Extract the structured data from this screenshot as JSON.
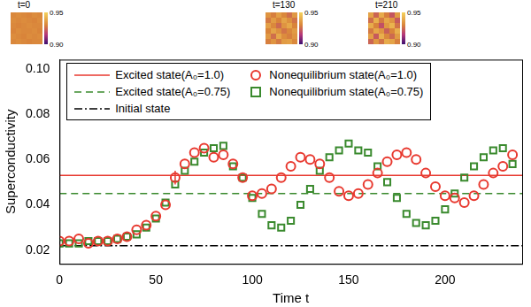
{
  "chart_data": [
    {
      "type": "scatter",
      "x_label": "Time t",
      "y_label": "Superconductivity",
      "x": [
        0,
        5,
        10,
        15,
        20,
        25,
        30,
        35,
        40,
        45,
        50,
        55,
        60,
        65,
        70,
        75,
        80,
        85,
        90,
        95,
        100,
        105,
        110,
        115,
        120,
        125,
        130,
        135,
        140,
        145,
        150,
        155,
        160,
        165,
        170,
        175,
        180,
        185,
        190,
        195,
        200,
        205,
        210,
        215,
        220,
        225,
        230,
        235
      ],
      "series": [
        {
          "name": "Excited state(A₀=1.0)",
          "type": "line",
          "line_style": "solid",
          "color": "#e8392f",
          "x": [
            0,
            240
          ],
          "values": [
            0.053,
            0.053
          ]
        },
        {
          "name": "Excited state(A₀=0.75)",
          "type": "line",
          "line_style": "dashed",
          "color": "#3a8a2e",
          "x": [
            0,
            240
          ],
          "values": [
            0.045,
            0.045
          ]
        },
        {
          "name": "Initial state",
          "type": "line",
          "line_style": "dashdot",
          "color": "#000000",
          "x": [
            0,
            240
          ],
          "values": [
            0.022,
            0.022
          ]
        },
        {
          "name": "Nonequilibrium state(A₀=1.0)",
          "type": "scatter",
          "marker": "circle",
          "color": "#e8392f",
          "values": [
            0.024,
            0.024,
            0.025,
            0.023,
            0.024,
            0.024,
            0.025,
            0.026,
            0.029,
            0.031,
            0.035,
            0.04,
            0.052,
            0.058,
            0.063,
            0.065,
            0.061,
            0.062,
            0.058,
            0.052,
            0.044,
            0.045,
            0.047,
            0.052,
            0.057,
            0.061,
            0.06,
            0.058,
            0.052,
            0.046,
            0.044,
            0.045,
            0.049,
            0.054,
            0.059,
            0.062,
            0.063,
            0.06,
            0.054,
            0.048,
            0.044,
            0.043,
            0.041,
            0.044,
            0.049,
            0.054,
            0.057,
            0.062
          ],
          "errors": [
            null,
            null,
            null,
            null,
            null,
            null,
            null,
            null,
            null,
            null,
            null,
            null,
            0.003,
            null,
            null,
            null,
            null,
            null,
            null,
            null,
            null,
            null,
            null,
            null,
            null,
            null,
            null,
            null,
            null,
            null,
            null,
            null,
            null,
            null,
            null,
            null,
            null,
            null,
            null,
            null,
            null,
            null,
            null,
            null,
            null,
            null,
            null,
            null
          ]
        },
        {
          "name": "Nonequilibrium state(A₀=0.75)",
          "type": "scatter",
          "marker": "square",
          "color": "#3a8a2e",
          "values": [
            0.023,
            0.023,
            0.023,
            0.024,
            0.024,
            0.024,
            0.025,
            0.026,
            0.027,
            0.03,
            0.034,
            0.041,
            0.049,
            0.055,
            0.059,
            0.063,
            0.065,
            0.066,
            0.057,
            0.052,
            0.043,
            0.036,
            0.031,
            0.03,
            0.033,
            0.04,
            0.047,
            0.055,
            0.061,
            0.064,
            0.067,
            0.064,
            0.063,
            0.057,
            0.05,
            0.043,
            0.036,
            0.032,
            0.031,
            0.033,
            0.038,
            0.045,
            0.052,
            0.057,
            0.061,
            0.064,
            0.065,
            0.058
          ]
        }
      ],
      "xlim": [
        0,
        240
      ],
      "xticks": [
        0,
        50,
        100,
        150,
        200
      ],
      "ylim": [
        0.014,
        0.104
      ],
      "yticks": [
        0.02,
        0.04,
        0.06,
        0.08,
        {
          "value": 0.1,
          "label": "0.10"
        }
      ],
      "grid": false,
      "legend": "upper left"
    },
    {
      "type": "heatmap",
      "title": "t=0",
      "cells": [
        [
          0.931,
          0.932,
          0.931,
          0.93,
          0.932,
          0.931
        ],
        [
          0.932,
          0.931,
          0.932,
          0.931,
          0.93,
          0.932
        ],
        [
          0.931,
          0.93,
          0.931,
          0.932,
          0.931,
          0.931
        ],
        [
          0.93,
          0.932,
          0.931,
          0.931,
          0.932,
          0.93
        ],
        [
          0.932,
          0.931,
          0.93,
          0.932,
          0.931,
          0.932
        ],
        [
          0.931,
          0.932,
          0.931,
          0.93,
          0.931,
          0.931
        ]
      ],
      "color_range": [
        0.9,
        0.95
      ],
      "color_ticks": [
        0.95,
        {
          "value": 0.9,
          "label": "0.90"
        }
      ]
    },
    {
      "type": "heatmap",
      "title": "t=130",
      "cells": [
        [
          0.934,
          0.929,
          0.937,
          0.931,
          0.926,
          0.935
        ],
        [
          0.928,
          0.936,
          0.93,
          0.938,
          0.933,
          0.927
        ],
        [
          0.937,
          0.931,
          0.925,
          0.934,
          0.939,
          0.93
        ],
        [
          0.93,
          0.938,
          0.933,
          0.927,
          0.931,
          0.936
        ],
        [
          0.935,
          0.926,
          0.939,
          0.932,
          0.929,
          0.934
        ],
        [
          0.929,
          0.934,
          0.928,
          0.936,
          0.937,
          0.931
        ]
      ],
      "color_range": [
        0.9,
        0.95
      ],
      "color_ticks": [
        0.95,
        {
          "value": 0.9,
          "label": "0.90"
        }
      ]
    },
    {
      "type": "heatmap",
      "title": "t=210",
      "cells": [
        [
          0.938,
          0.924,
          0.94,
          0.929,
          0.921,
          0.936
        ],
        [
          0.926,
          0.941,
          0.928,
          0.939,
          0.934,
          0.922
        ],
        [
          0.94,
          0.93,
          0.92,
          0.935,
          0.942,
          0.927
        ],
        [
          0.928,
          0.939,
          0.934,
          0.923,
          0.93,
          0.941
        ],
        [
          0.937,
          0.922,
          0.941,
          0.931,
          0.925,
          0.936
        ],
        [
          0.924,
          0.935,
          0.927,
          0.94,
          0.938,
          0.929
        ]
      ],
      "color_range": [
        0.9,
        0.95
      ],
      "color_ticks": [
        0.95,
        {
          "value": 0.9,
          "label": "0.90"
        }
      ]
    }
  ]
}
